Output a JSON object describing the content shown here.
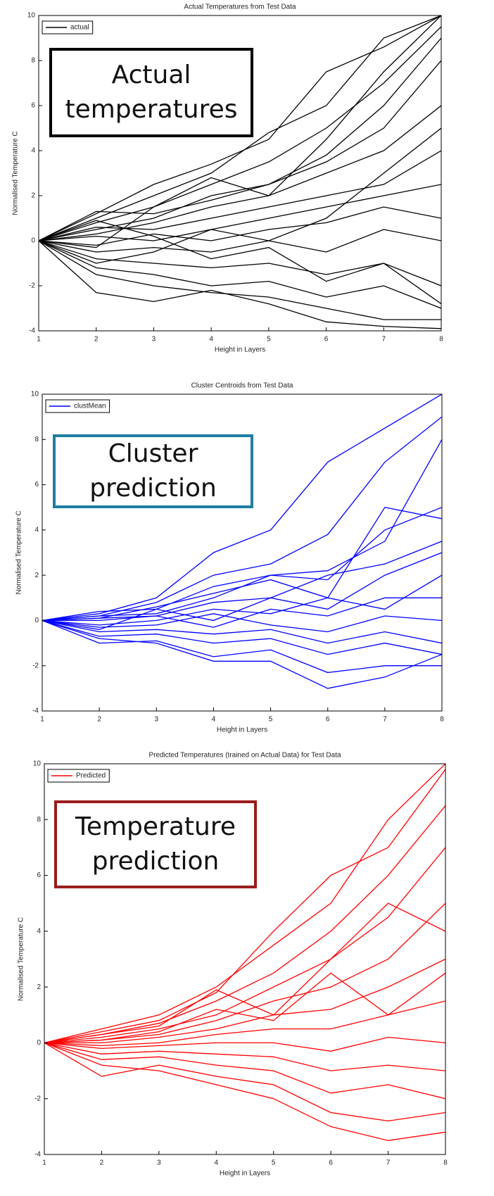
{
  "chart_data": [
    {
      "type": "line",
      "title": "Actual Temperatures from Test Data",
      "xlabel": "Height in Layers",
      "ylabel": "Normalised Temperature C",
      "x": [
        1,
        2,
        3,
        4,
        5,
        6,
        7,
        8
      ],
      "xlim": [
        1,
        8
      ],
      "ylim": [
        -4,
        10
      ],
      "xticks": [
        1,
        2,
        3,
        4,
        5,
        6,
        7,
        8
      ],
      "yticks": [
        -4,
        -2,
        0,
        2,
        4,
        6,
        8,
        10
      ],
      "legend": "upper left",
      "annotation": {
        "text": "Actual temperatures",
        "border_color": "#000000"
      },
      "series": [
        {
          "name": "actual",
          "color": "#000000",
          "lines": [
            [
              0,
              1.2,
              2.5,
              3.4,
              4.5,
              7.5,
              8.6,
              10
            ],
            [
              0,
              1.0,
              2.0,
              3.0,
              4.8,
              6.0,
              9.0,
              10
            ],
            [
              0,
              0.8,
              1.5,
              2.5,
              3.5,
              5.0,
              7.0,
              9.5
            ],
            [
              0,
              0.5,
              1.0,
              2.0,
              2.5,
              3.5,
              5.0,
              8.0
            ],
            [
              0,
              0.3,
              0.8,
              1.5,
              2.0,
              3.0,
              4.0,
              6.0
            ],
            [
              0,
              0.6,
              0.5,
              1.0,
              1.5,
              2.0,
              2.5,
              4.0
            ],
            [
              0,
              0.2,
              0.0,
              0.5,
              1.0,
              1.5,
              2.0,
              2.5
            ],
            [
              0,
              -0.2,
              0.3,
              0.0,
              0.5,
              0.8,
              1.5,
              1.0
            ],
            [
              0,
              -0.5,
              -0.3,
              -0.5,
              0.0,
              -0.5,
              0.5,
              0.0
            ],
            [
              0,
              -0.8,
              -1.0,
              -1.2,
              -1.0,
              -1.5,
              -1.0,
              -2.0
            ],
            [
              0,
              -1.2,
              -1.5,
              -2.0,
              -1.8,
              -2.5,
              -2.0,
              -3.0
            ],
            [
              0,
              -1.5,
              -2.0,
              -2.3,
              -2.5,
              -3.0,
              -3.5,
              -3.5
            ],
            [
              0,
              -2.3,
              -2.7,
              -2.2,
              -2.8,
              -3.6,
              -3.8,
              -3.9
            ],
            [
              0,
              1.3,
              1.2,
              1.8,
              2.5,
              3.8,
              6.0,
              9.0
            ],
            [
              0,
              -1.0,
              -0.5,
              0.5,
              0.0,
              1.0,
              3.0,
              5.0
            ],
            [
              0,
              0.9,
              0.2,
              -0.8,
              -0.3,
              -1.8,
              -1.0,
              -2.8
            ],
            [
              0,
              -0.3,
              1.5,
              2.8,
              2.0,
              4.5,
              7.5,
              10
            ]
          ]
        }
      ]
    },
    {
      "type": "line",
      "title": "Cluster Centroids from Test Data",
      "xlabel": "Height in Layers",
      "ylabel": "Normalised Temperature C",
      "x": [
        1,
        2,
        3,
        4,
        5,
        6,
        7,
        8
      ],
      "xlim": [
        1,
        8
      ],
      "ylim": [
        -4,
        10
      ],
      "xticks": [
        1,
        2,
        3,
        4,
        5,
        6,
        7,
        8
      ],
      "yticks": [
        -4,
        -2,
        0,
        2,
        4,
        6,
        8,
        10
      ],
      "legend": "upper left",
      "annotation": {
        "text": "Cluster prediction",
        "border_color": "#1f7ea3"
      },
      "series": [
        {
          "name": "clustMean",
          "color": "#0000ff",
          "lines": [
            [
              0,
              0.3,
              1.0,
              3.0,
              4.0,
              7.0,
              8.5,
              10
            ],
            [
              0,
              0.2,
              0.8,
              2.0,
              2.5,
              3.8,
              7.0,
              9.0
            ],
            [
              0,
              0.4,
              0.5,
              1.5,
              2.0,
              2.2,
              3.5,
              8.0
            ],
            [
              0,
              0.1,
              0.6,
              1.2,
              1.8,
              1.0,
              5.0,
              4.5
            ],
            [
              0,
              0.0,
              0.2,
              0.8,
              1.0,
              2.0,
              2.5,
              3.5
            ],
            [
              0,
              -0.2,
              0.0,
              0.5,
              0.3,
              1.0,
              0.5,
              2.0
            ],
            [
              0,
              0.1,
              0.2,
              -0.3,
              0.5,
              0.2,
              1.0,
              1.0
            ],
            [
              0,
              -0.3,
              -0.2,
              0.3,
              -0.2,
              -0.5,
              0.2,
              0.0
            ],
            [
              0,
              -0.5,
              -0.4,
              -0.6,
              -0.4,
              -1.0,
              -0.5,
              -1.0
            ],
            [
              0,
              -0.7,
              -0.6,
              -1.0,
              -0.8,
              -1.5,
              -1.0,
              -1.5
            ],
            [
              0,
              -1.0,
              -0.9,
              -1.6,
              -1.3,
              -2.3,
              -2.0,
              -2.0
            ],
            [
              0,
              -0.8,
              -1.0,
              -1.8,
              -1.8,
              -3.0,
              -2.5,
              -1.5
            ],
            [
              0,
              0.2,
              0.3,
              1.0,
              2.0,
              1.8,
              4.0,
              5.0
            ],
            [
              0,
              -0.4,
              0.5,
              0.0,
              1.0,
              0.5,
              2.0,
              3.0
            ]
          ]
        }
      ]
    },
    {
      "type": "line",
      "title": "Predicted Temperatures (trained on Actual Data) for Test Data",
      "xlabel": "Height in Layers",
      "ylabel": "Normalised Temperature C",
      "x": [
        1,
        2,
        3,
        4,
        5,
        6,
        7,
        8
      ],
      "xlim": [
        1,
        8
      ],
      "ylim": [
        -4,
        10
      ],
      "xticks": [
        1,
        2,
        3,
        4,
        5,
        6,
        7,
        8
      ],
      "yticks": [
        -4,
        -2,
        0,
        2,
        4,
        6,
        8,
        10
      ],
      "legend": "upper left",
      "annotation": {
        "text": "Temperature prediction",
        "border_color": "#9b1c1c"
      },
      "series": [
        {
          "name": "Predicted",
          "color": "#ff0000",
          "lines": [
            [
              0,
              0.5,
              1.0,
              2.0,
              3.5,
              5.0,
              8.0,
              10
            ],
            [
              0,
              0.4,
              0.8,
              1.8,
              4.0,
              6.0,
              7.0,
              9.8
            ],
            [
              0,
              0.3,
              0.7,
              1.5,
              2.5,
              4.0,
              6.0,
              8.5
            ],
            [
              0,
              0.2,
              0.5,
              1.0,
              2.0,
              3.0,
              4.5,
              7.0
            ],
            [
              0,
              0.1,
              0.3,
              0.8,
              1.5,
              2.0,
              3.0,
              5.0
            ],
            [
              0,
              0.0,
              0.2,
              0.5,
              1.0,
              1.2,
              2.0,
              3.0
            ],
            [
              0,
              -0.1,
              0.0,
              0.3,
              0.5,
              0.5,
              1.0,
              1.5
            ],
            [
              0,
              -0.2,
              -0.1,
              0.0,
              0.0,
              -0.3,
              0.2,
              0.0
            ],
            [
              0,
              -0.4,
              -0.3,
              -0.4,
              -0.5,
              -1.0,
              -0.8,
              -1.0
            ],
            [
              0,
              -0.6,
              -0.5,
              -0.8,
              -1.0,
              -1.8,
              -1.5,
              -2.0
            ],
            [
              0,
              -1.2,
              -0.8,
              -1.2,
              -1.5,
              -2.5,
              -2.8,
              -2.5
            ],
            [
              0,
              -0.8,
              -1.0,
              -1.5,
              -2.0,
              -3.0,
              -3.5,
              -3.2
            ],
            [
              0,
              0.3,
              0.6,
              1.9,
              1.0,
              3.0,
              5.0,
              4.0
            ],
            [
              0,
              0.1,
              0.4,
              1.2,
              0.8,
              2.5,
              1.0,
              2.5
            ]
          ]
        }
      ]
    }
  ]
}
